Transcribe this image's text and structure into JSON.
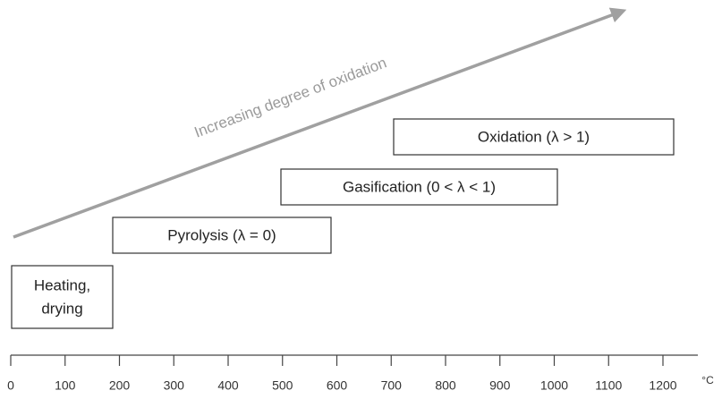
{
  "arrow": {
    "label": "Increasing degree of oxidation"
  },
  "stages": [
    {
      "lines": [
        "Heating,",
        "drying"
      ]
    },
    {
      "lines": [
        "Pyrolysis (λ = 0)"
      ]
    },
    {
      "lines": [
        "Gasification (0 < λ < 1)"
      ]
    },
    {
      "lines": [
        "Oxidation (λ > 1)"
      ]
    }
  ],
  "axis": {
    "unit": "°C",
    "ticks": [
      0,
      100,
      200,
      300,
      400,
      500,
      600,
      700,
      800,
      900,
      1000,
      1100,
      1200
    ]
  }
}
